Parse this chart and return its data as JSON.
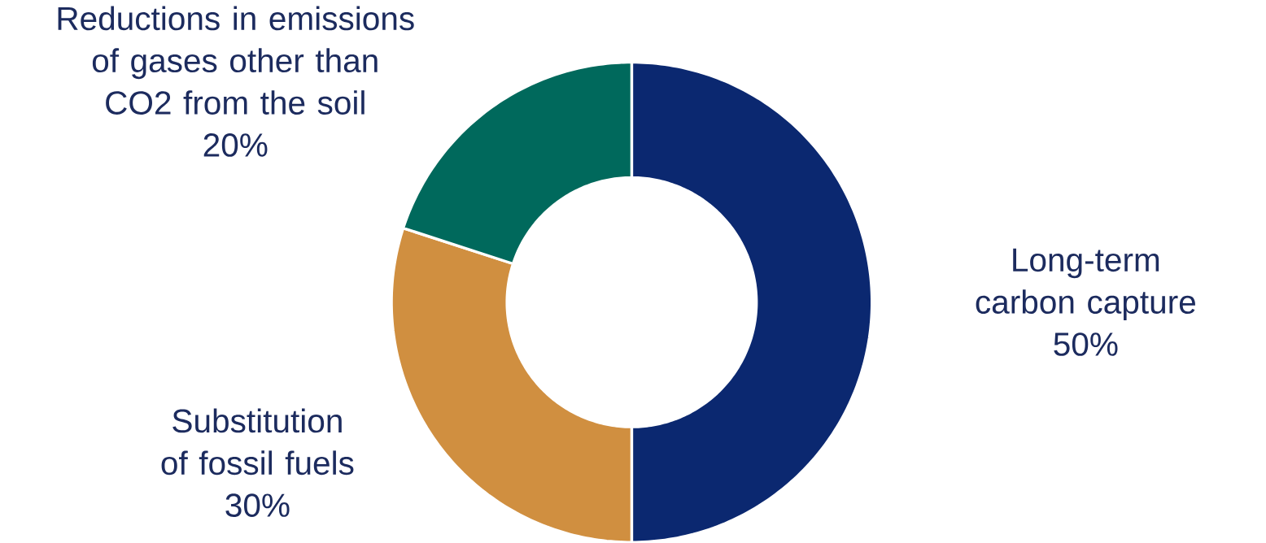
{
  "chart_data": {
    "type": "donut",
    "categories": [
      "Long-term carbon capture",
      "Substitution of fossil fuels",
      "Reductions in emissions of gases other than CO2 from the soil"
    ],
    "values": [
      50,
      30,
      20
    ],
    "value_labels": [
      "50%",
      "30%",
      "20%"
    ],
    "colors": [
      "#0b2870",
      "#d08f40",
      "#00695c"
    ]
  }
}
